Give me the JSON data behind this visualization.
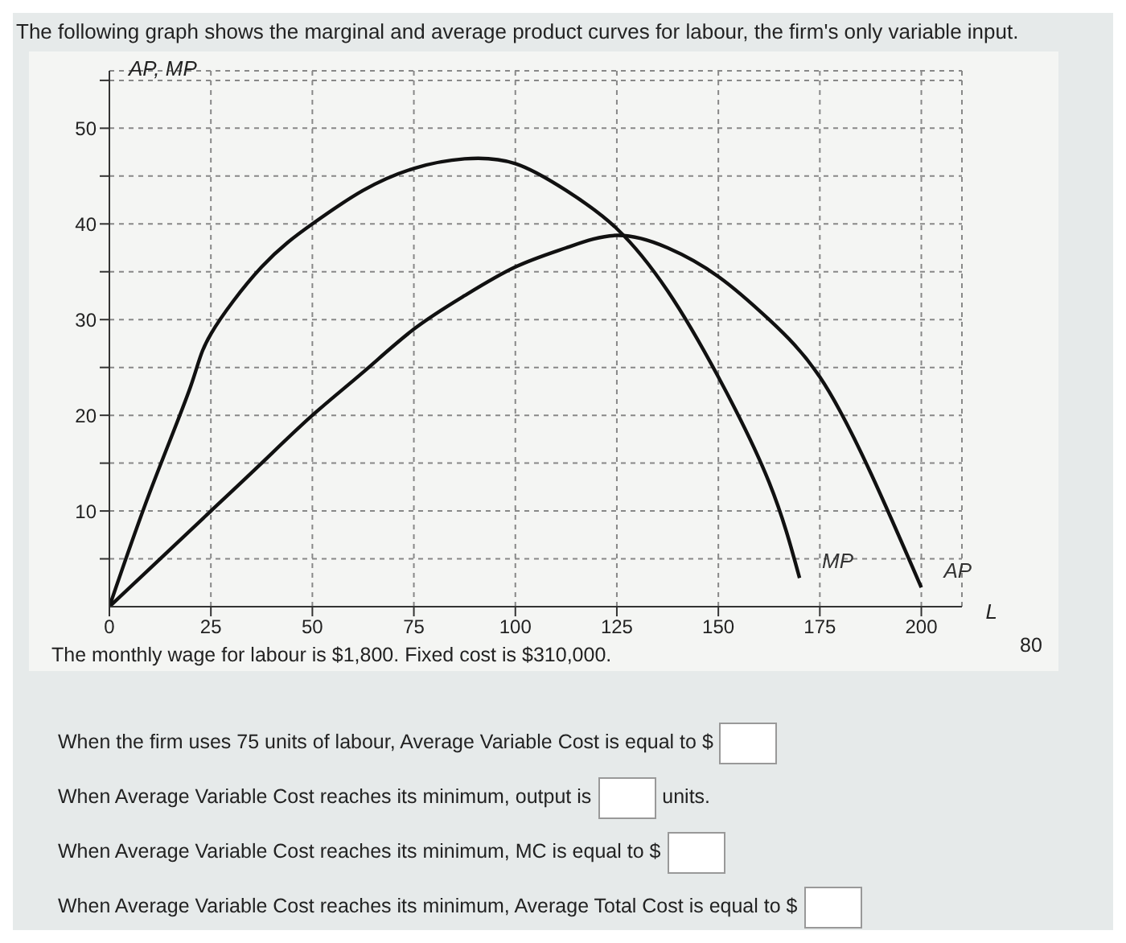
{
  "chart_data": {
    "type": "line",
    "title": "The following graph shows the marginal and average product curves for labour, the firm's only variable input.",
    "xlabel": "L",
    "ylabel": "AP, MP",
    "x": [
      0,
      10,
      20,
      25,
      37.5,
      50,
      62.5,
      75,
      87.5,
      100,
      112.5,
      125,
      137.5,
      150,
      162.5,
      170
    ],
    "series": [
      {
        "name": "MP",
        "color": "#111111",
        "values": [
          0,
          12,
          23,
          28.5,
          35.5,
          40,
          43.5,
          45.8,
          46.8,
          46.3,
          43.5,
          39.5,
          33,
          24,
          13,
          3
        ]
      },
      {
        "name": "AP",
        "color": "#111111",
        "x": [
          0,
          12.5,
          25,
          37.5,
          50,
          62.5,
          75,
          87.5,
          100,
          112.5,
          125,
          137.5,
          150,
          162.5,
          175,
          187.5,
          200
        ],
        "values": [
          0,
          5,
          10,
          15,
          20,
          24.5,
          29,
          32.5,
          35.5,
          37.5,
          38.8,
          37.5,
          34.5,
          30,
          24,
          14,
          2
        ]
      }
    ],
    "xlim": [
      0,
      210
    ],
    "ylim": [
      0,
      56
    ],
    "xticks": [
      0,
      25,
      50,
      75,
      100,
      125,
      150,
      175,
      200
    ],
    "yticks": [
      {
        "value": 5,
        "label": null
      },
      10,
      {
        "value": 15,
        "label": null
      },
      20,
      {
        "value": 25,
        "label": null
      },
      30,
      {
        "value": 35,
        "label": null
      },
      40,
      {
        "value": 45,
        "label": null
      },
      50,
      {
        "value": 55,
        "label": null
      }
    ],
    "grid": true,
    "marker": "none",
    "line_style": "solid",
    "annotations": [
      "The monthly wage for labour is $1,800. Fixed cost is $310,000.",
      "When the firm uses 75 units of labour, Average Variable Cost is equal to $",
      "When Average Variable Cost reaches its minimum, output is",
      "units.",
      "When Average Variable Cost reaches its minimum, MC is equal to $",
      "When Average Variable Cost reaches its minimum, Average Total Cost is equal to $",
      "80"
    ]
  }
}
